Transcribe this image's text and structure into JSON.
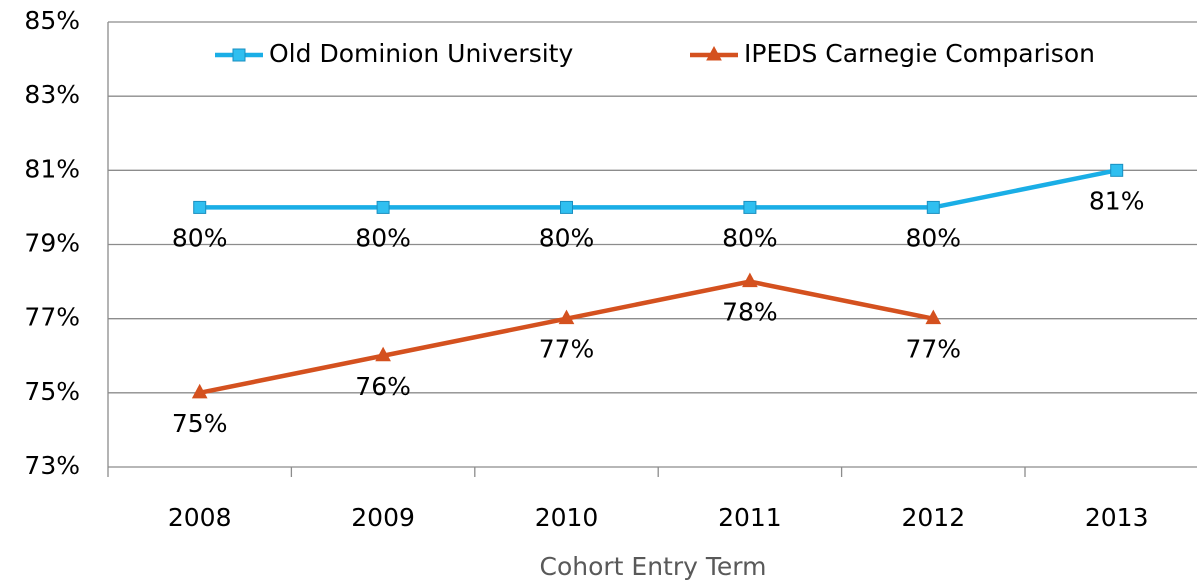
{
  "chart_data": {
    "type": "line",
    "x_label": "Cohort Entry Term",
    "categories": [
      "2008",
      "2009",
      "2010",
      "2011",
      "2012",
      "2013"
    ],
    "series": [
      {
        "name": "Old Dominion University",
        "color": "#1aaee6",
        "marker": "square",
        "values": [
          80,
          80,
          80,
          80,
          80,
          81
        ],
        "value_labels": [
          "80%",
          "80%",
          "80%",
          "80%",
          "80%",
          "81%"
        ]
      },
      {
        "name": "IPEDS Carnegie Comparison",
        "color": "#d4511f",
        "marker": "triangle",
        "values": [
          75,
          76,
          77,
          78,
          77,
          null
        ],
        "value_labels": [
          "75%",
          "76%",
          "77%",
          "78%",
          "77%",
          null
        ]
      }
    ],
    "ylim": [
      73,
      85
    ],
    "yticks": [
      {
        "value": 73,
        "label": "73%"
      },
      {
        "value": 75,
        "label": "75%"
      },
      {
        "value": 77,
        "label": "77%"
      },
      {
        "value": 79,
        "label": "79%"
      },
      {
        "value": 81,
        "label": "81%"
      },
      {
        "value": 83,
        "label": "83%"
      },
      {
        "value": 85,
        "label": "85%"
      }
    ],
    "grid": true,
    "legend": "top"
  }
}
